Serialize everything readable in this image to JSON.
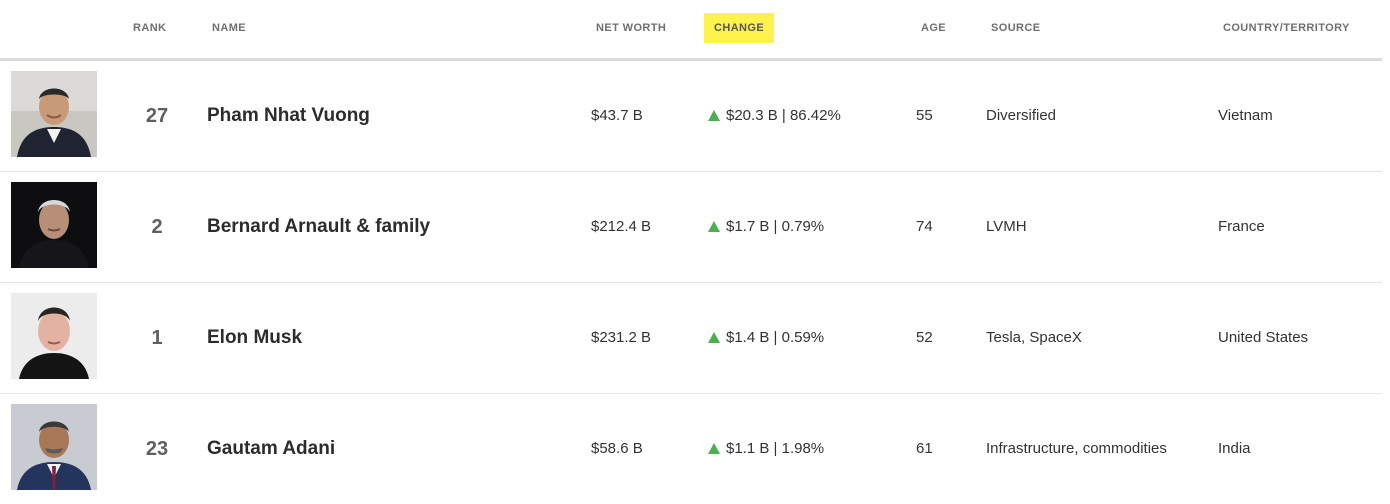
{
  "header": {
    "rank": "RANK",
    "name": "NAME",
    "net_worth": "NET WORTH",
    "change": "CHANGE",
    "age": "AGE",
    "source": "SOURCE",
    "country": "COUNTRY/TERRITORY"
  },
  "colors": {
    "active_sort_bg": "#fef24c",
    "up_arrow": "#4caf50",
    "header_text": "#6f6f6f",
    "divider": "#dcdcdc"
  },
  "rows": [
    {
      "rank": "27",
      "name": "Pham Nhat Vuong",
      "net_worth": "$43.7 B",
      "change": "$20.3 B | 86.42%",
      "change_direction": "up",
      "age": "55",
      "source": "Diversified",
      "country": "Vietnam"
    },
    {
      "rank": "2",
      "name": "Bernard Arnault & family",
      "net_worth": "$212.4 B",
      "change": "$1.7 B | 0.79%",
      "change_direction": "up",
      "age": "74",
      "source": "LVMH",
      "country": "France"
    },
    {
      "rank": "1",
      "name": "Elon Musk",
      "net_worth": "$231.2 B",
      "change": "$1.4 B | 0.59%",
      "change_direction": "up",
      "age": "52",
      "source": "Tesla, SpaceX",
      "country": "United States"
    },
    {
      "rank": "23",
      "name": "Gautam Adani",
      "net_worth": "$58.6 B",
      "change": "$1.1 B | 1.98%",
      "change_direction": "up",
      "age": "61",
      "source": "Infrastructure, commodities",
      "country": "India"
    }
  ]
}
